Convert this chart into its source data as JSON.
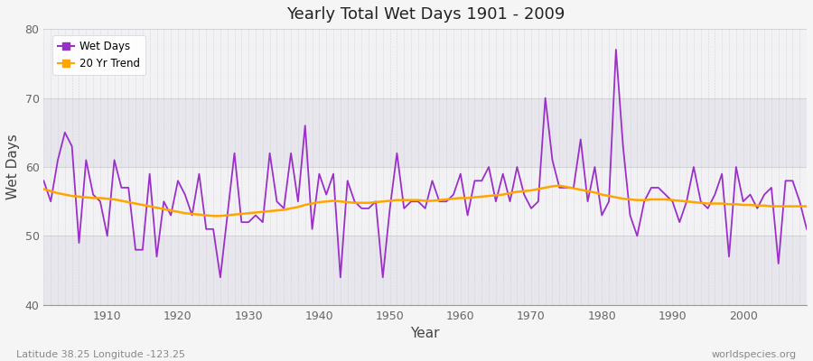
{
  "title": "Yearly Total Wet Days 1901 - 2009",
  "xlabel": "Year",
  "ylabel": "Wet Days",
  "lat_lon_label": "Latitude 38.25 Longitude -123.25",
  "source_label": "worldspecies.org",
  "ylim": [
    40,
    80
  ],
  "yticks": [
    40,
    50,
    60,
    70,
    80
  ],
  "wet_days_color": "#9B30C8",
  "trend_color": "#FFA500",
  "bg_light": "#F2F2F5",
  "bg_band": "#E6E6EC",
  "figure_bg": "#F5F5F5",
  "legend_wet": "Wet Days",
  "legend_trend": "20 Yr Trend",
  "years": [
    1901,
    1902,
    1903,
    1904,
    1905,
    1906,
    1907,
    1908,
    1909,
    1910,
    1911,
    1912,
    1913,
    1914,
    1915,
    1916,
    1917,
    1918,
    1919,
    1920,
    1921,
    1922,
    1923,
    1924,
    1925,
    1926,
    1927,
    1928,
    1929,
    1930,
    1931,
    1932,
    1933,
    1934,
    1935,
    1936,
    1937,
    1938,
    1939,
    1940,
    1941,
    1942,
    1943,
    1944,
    1945,
    1946,
    1947,
    1948,
    1949,
    1950,
    1951,
    1952,
    1953,
    1954,
    1955,
    1956,
    1957,
    1958,
    1959,
    1960,
    1961,
    1962,
    1963,
    1964,
    1965,
    1966,
    1967,
    1968,
    1969,
    1970,
    1971,
    1972,
    1973,
    1974,
    1975,
    1976,
    1977,
    1978,
    1979,
    1980,
    1981,
    1982,
    1983,
    1984,
    1985,
    1986,
    1987,
    1988,
    1989,
    1990,
    1991,
    1992,
    1993,
    1994,
    1995,
    1996,
    1997,
    1998,
    1999,
    2000,
    2001,
    2002,
    2003,
    2004,
    2005,
    2006,
    2007,
    2008,
    2009
  ],
  "wet_days": [
    58,
    55,
    61,
    65,
    63,
    49,
    61,
    56,
    55,
    50,
    61,
    57,
    57,
    48,
    48,
    59,
    47,
    55,
    53,
    58,
    56,
    53,
    59,
    51,
    51,
    44,
    53,
    62,
    52,
    52,
    53,
    52,
    62,
    55,
    54,
    62,
    55,
    66,
    51,
    59,
    56,
    59,
    44,
    58,
    55,
    54,
    54,
    55,
    44,
    54,
    62,
    54,
    55,
    55,
    54,
    58,
    55,
    55,
    56,
    59,
    53,
    58,
    58,
    60,
    55,
    59,
    55,
    60,
    56,
    54,
    55,
    70,
    61,
    57,
    57,
    57,
    64,
    55,
    60,
    53,
    55,
    77,
    63,
    53,
    50,
    55,
    57,
    57,
    56,
    55,
    52,
    55,
    60,
    55,
    54,
    56,
    59,
    47,
    60,
    55,
    56,
    54,
    56,
    57,
    46,
    58,
    58,
    55,
    51
  ],
  "trend_years": [
    1901,
    1902,
    1903,
    1904,
    1905,
    1906,
    1907,
    1908,
    1909,
    1910,
    1911,
    1912,
    1913,
    1914,
    1915,
    1916,
    1917,
    1918,
    1919,
    1920,
    1921,
    1922,
    1923,
    1924,
    1925,
    1926,
    1927,
    1928,
    1929,
    1930,
    1931,
    1932,
    1933,
    1934,
    1935,
    1936,
    1937,
    1938,
    1939,
    1940,
    1941,
    1942,
    1943,
    1944,
    1945,
    1946,
    1947,
    1948,
    1949,
    1950,
    1951,
    1952,
    1953,
    1954,
    1955,
    1956,
    1957,
    1958,
    1959,
    1960,
    1961,
    1962,
    1963,
    1964,
    1965,
    1966,
    1967,
    1968,
    1969,
    1970,
    1971,
    1972,
    1973,
    1974,
    1975,
    1976,
    1977,
    1978,
    1979,
    1980,
    1981,
    1982,
    1983,
    1984,
    1985,
    1986,
    1987,
    1988,
    1989,
    1990,
    1991,
    1992,
    1993,
    1994,
    1995,
    1996,
    1997,
    1998,
    1999,
    2000,
    2001,
    2002,
    2003,
    2004,
    2005,
    2006,
    2007,
    2008,
    2009
  ],
  "trend_values": [
    56.8,
    56.5,
    56.2,
    56.0,
    55.8,
    55.7,
    55.6,
    55.5,
    55.5,
    55.4,
    55.3,
    55.1,
    54.9,
    54.7,
    54.5,
    54.3,
    54.1,
    53.9,
    53.7,
    53.5,
    53.3,
    53.2,
    53.1,
    53.0,
    52.9,
    52.9,
    53.0,
    53.1,
    53.2,
    53.3,
    53.4,
    53.5,
    53.6,
    53.7,
    53.8,
    54.0,
    54.2,
    54.5,
    54.7,
    54.9,
    55.0,
    55.1,
    55.0,
    54.9,
    54.8,
    54.8,
    54.8,
    54.9,
    55.0,
    55.1,
    55.2,
    55.2,
    55.2,
    55.2,
    55.1,
    55.1,
    55.2,
    55.3,
    55.4,
    55.5,
    55.5,
    55.6,
    55.7,
    55.8,
    55.9,
    56.0,
    56.2,
    56.4,
    56.5,
    56.6,
    56.8,
    57.0,
    57.2,
    57.3,
    57.1,
    56.9,
    56.7,
    56.5,
    56.3,
    56.0,
    55.8,
    55.6,
    55.4,
    55.3,
    55.2,
    55.2,
    55.3,
    55.3,
    55.3,
    55.2,
    55.1,
    55.0,
    54.9,
    54.8,
    54.7,
    54.7,
    54.7,
    54.6,
    54.6,
    54.5,
    54.5,
    54.4,
    54.4,
    54.3,
    54.3,
    54.3,
    54.3,
    54.3,
    54.3
  ]
}
